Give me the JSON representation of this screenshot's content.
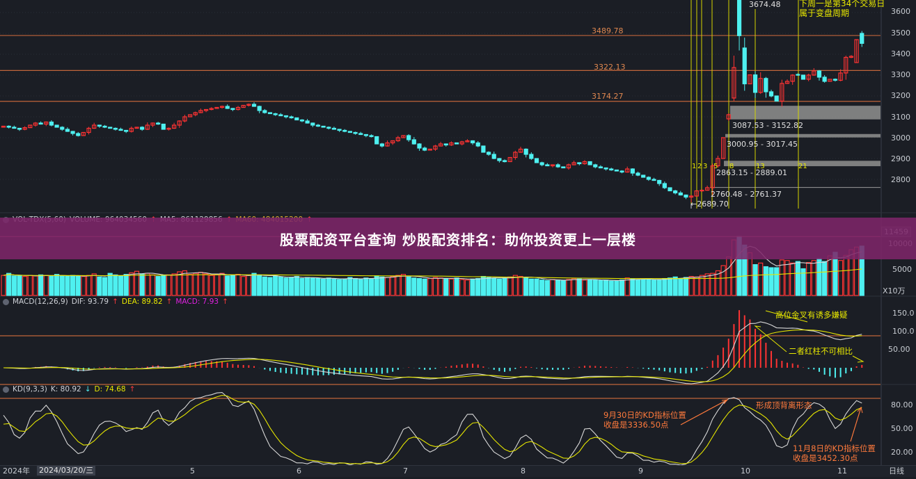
{
  "banner": {
    "title": "股票配资平台查询 炒股配资排名：助你投资更上一层楼"
  },
  "price_panel": {
    "axis_ticks": [
      "3600",
      "3500",
      "3400",
      "3300",
      "3200",
      "3100",
      "3000",
      "2900",
      "2800"
    ],
    "levels": [
      {
        "value": 3489.78,
        "label": "3489.78"
      },
      {
        "value": 3322.13,
        "label": "3322.13"
      },
      {
        "value": 3174.27,
        "label": "3174.27"
      }
    ],
    "zones": [
      {
        "low": 3087.53,
        "high": 3152.82,
        "label": "3087.53 - 3152.82"
      },
      {
        "low": 3000.95,
        "high": 3017.45,
        "label": "3000.95 - 3017.45"
      },
      {
        "low": 2863.15,
        "high": 2889.01,
        "label": "2863.15 - 2889.01"
      },
      {
        "low": 2760.48,
        "high": 2761.37,
        "label": "2760.48 - 2761.37"
      }
    ],
    "fib_labels": [
      "1",
      "2",
      "3",
      "5",
      "8",
      "13",
      "21"
    ],
    "high_label": "3674.48",
    "low_label": "←2689.70",
    "note_line1": "下周一是第34个交易日",
    "note_line2": "属于变盘周期",
    "colors": {
      "up": "#ff3333",
      "down": "#4ef0f0",
      "level": "#c0643a",
      "fib": "#d4d400",
      "zone": "#8a8a8a"
    }
  },
  "volume_panel": {
    "title": "VOL-TDX(5,60)",
    "volume": "VOLUME: 964034560",
    "ma5": "MA5: 861129856",
    "ma60": "MA60: 484015200",
    "arrow": "↑",
    "axis_ticks": [
      "11459",
      "10000",
      "5000"
    ],
    "unit": "X10万"
  },
  "macd_panel": {
    "title": "MACD(12,26,9)",
    "dif": "DIF: 93.79",
    "dea": "DEA: 89.82",
    "macd": "MACD: 7.93",
    "arrow": "↑",
    "axis_ticks": [
      "150.0",
      "100.0",
      "50.00"
    ],
    "note1": "高位金叉有诱多嫌疑",
    "note2": "二者红柱不可相比"
  },
  "kd_panel": {
    "title": "KD(9,3,3)",
    "k": "K: 80.92",
    "k_arrow": "↓",
    "d": "D: 74.68",
    "d_arrow": "↑",
    "axis_ticks": [
      "80.00",
      "50.00",
      "20.00"
    ],
    "note_sep_1": "9月30日的KD指标位置",
    "note_sep_2": "收盘是3336.50点",
    "note_div": "形成顶背离形态",
    "note_nov_1": "11月8日的KD指标位置",
    "note_nov_2": "收盘是3452.30点"
  },
  "x_axis": {
    "year": "2024年",
    "cursor_date": "2024/03/20/三",
    "months": [
      "5",
      "6",
      "7",
      "8",
      "9",
      "10",
      "11"
    ],
    "period": "日线"
  },
  "chart_data": {
    "type": "candlestick",
    "period": "daily",
    "start_date": "2024/03/20",
    "closes": [
      3055,
      3050,
      3045,
      3040,
      3048,
      3060,
      3070,
      3065,
      3075,
      3060,
      3050,
      3040,
      3030,
      3020,
      3010,
      3025,
      3045,
      3060,
      3055,
      3050,
      3045,
      3040,
      3035,
      3030,
      3045,
      3050,
      3040,
      3060,
      3070,
      3065,
      3040,
      3045,
      3060,
      3080,
      3100,
      3110,
      3120,
      3130,
      3135,
      3140,
      3145,
      3150,
      3140,
      3135,
      3145,
      3155,
      3160,
      3150,
      3130,
      3120,
      3115,
      3110,
      3105,
      3100,
      3095,
      3085,
      3080,
      3070,
      3060,
      3055,
      3050,
      3045,
      3040,
      3035,
      3030,
      3025,
      3020,
      3015,
      3010,
      3005,
      2970,
      2960,
      2975,
      2985,
      3000,
      3010,
      2990,
      2970,
      2950,
      2940,
      2945,
      2960,
      2970,
      2965,
      2975,
      2970,
      2980,
      2985,
      2975,
      2960,
      2930,
      2920,
      2900,
      2890,
      2885,
      2905,
      2930,
      2945,
      2920,
      2900,
      2880,
      2870,
      2865,
      2870,
      2860,
      2855,
      2870,
      2880,
      2875,
      2885,
      2870,
      2860,
      2855,
      2850,
      2845,
      2840,
      2835,
      2850,
      2830,
      2820,
      2810,
      2800,
      2795,
      2780,
      2760,
      2745,
      2735,
      2725,
      2715,
      2720,
      2745,
      2748,
      2760,
      2865,
      2900,
      3000,
      3110,
      3336,
      3489,
      3258,
      3301,
      3217,
      3284,
      3220,
      3200,
      3175,
      3260,
      3270,
      3300,
      3300,
      3280,
      3300,
      3320,
      3290,
      3270,
      3280,
      3275,
      3310,
      3385,
      3390,
      3470,
      3452
    ],
    "open_overrides": {
      "136": 3090,
      "137": 3190,
      "138": 3674.48,
      "139": 3430,
      "158": 3310,
      "160": 3360,
      "161": 3500
    },
    "high_overrides": {
      "138": 3674.48
    },
    "low_overrides": {
      "129": 2689.7
    },
    "volumes_x10w": [
      3900,
      4300,
      3800,
      3800,
      3700,
      3900,
      3800,
      4000,
      3900,
      3700,
      4100,
      3800,
      3700,
      3900,
      3800,
      3700,
      3900,
      4200,
      3600,
      3500,
      4300,
      4000,
      3800,
      4100,
      4400,
      4700,
      4200,
      4300,
      4000,
      3700,
      3900,
      4000,
      4200,
      4600,
      4800,
      4100,
      4300,
      4500,
      4200,
      3900,
      4000,
      4300,
      3800,
      3900,
      4100,
      3700,
      3900,
      4300,
      4000,
      3600,
      3500,
      3800,
      3600,
      3400,
      3500,
      3700,
      3300,
      3500,
      3400,
      3300,
      3200,
      3400,
      3300,
      3100,
      3200,
      3500,
      3300,
      3100,
      3400,
      3200,
      3800,
      3600,
      3500,
      3700,
      3900,
      4100,
      3600,
      3400,
      3300,
      3200,
      3300,
      3500,
      3400,
      3300,
      3200,
      3400,
      3100,
      3000,
      3200,
      3300,
      3700,
      3500,
      3400,
      3200,
      3300,
      3600,
      3900,
      3700,
      3400,
      3200,
      3200,
      3000,
      2900,
      3100,
      3000,
      2900,
      3100,
      3300,
      3200,
      3000,
      3100,
      3000,
      2900,
      3000,
      2800,
      2900,
      3000,
      3400,
      3200,
      3100,
      3100,
      3200,
      3000,
      3100,
      3300,
      3400,
      3600,
      3300,
      3500,
      3700,
      3600,
      3900,
      4200,
      4300,
      4800,
      5800,
      7500,
      10800,
      11459,
      9800,
      8300,
      6000,
      6300,
      5600,
      5400,
      5400,
      6900,
      6800,
      6300,
      6600,
      5200,
      6400,
      6800,
      7200,
      6600,
      7700,
      8400,
      6800,
      7800,
      8900,
      9400,
      9600
    ],
    "price_range": [
      2650,
      3700
    ],
    "volume_range": [
      0,
      11459
    ],
    "macd_range": [
      -60,
      180
    ],
    "kd_range": [
      0,
      100
    ],
    "grid": true
  }
}
